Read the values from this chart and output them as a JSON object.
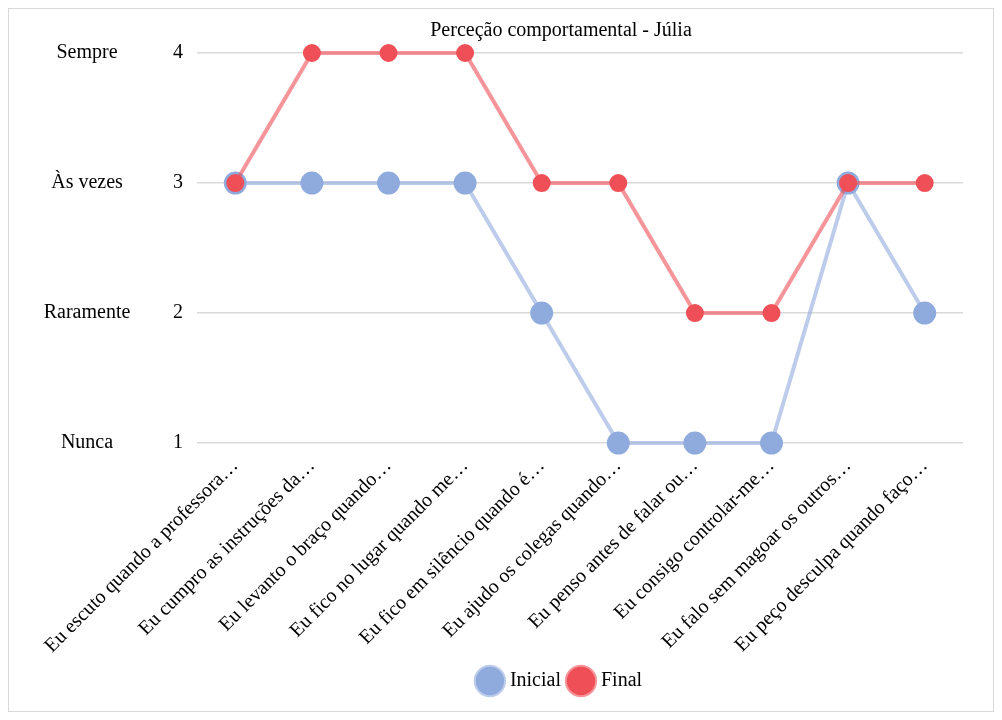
{
  "chart_data": {
    "type": "line",
    "title": "Perceção comportamental - Júlia",
    "categories": [
      "Eu escuto quando a professora…",
      "Eu cumpro as instruções da…",
      "Eu levanto o braço quando…",
      "Eu fico no lugar quando me…",
      "Eu fico em silêncio quando é…",
      "Eu ajudo os colegas quando…",
      "Eu penso antes de falar ou…",
      "Eu consigo controlar-me…",
      "Eu falo sem magoar os outros…",
      "Eu peço desculpa quando faço…"
    ],
    "series": [
      {
        "name": "Inicial",
        "color": "#8faadc",
        "values": [
          3,
          3,
          3,
          3,
          2,
          1,
          1,
          1,
          3,
          2
        ]
      },
      {
        "name": "Final",
        "color": "#ef4f57",
        "values": [
          3,
          4,
          4,
          4,
          3,
          3,
          2,
          2,
          3,
          3
        ]
      }
    ],
    "ylim": [
      1,
      4
    ],
    "yticks": [
      1,
      2,
      3,
      4
    ],
    "annotations": [
      "Nunca",
      "Raramente",
      "Às vezes",
      "Sempre"
    ],
    "grid": "y",
    "legend": "bottom",
    "marker": "circle",
    "line_style": "solid"
  }
}
